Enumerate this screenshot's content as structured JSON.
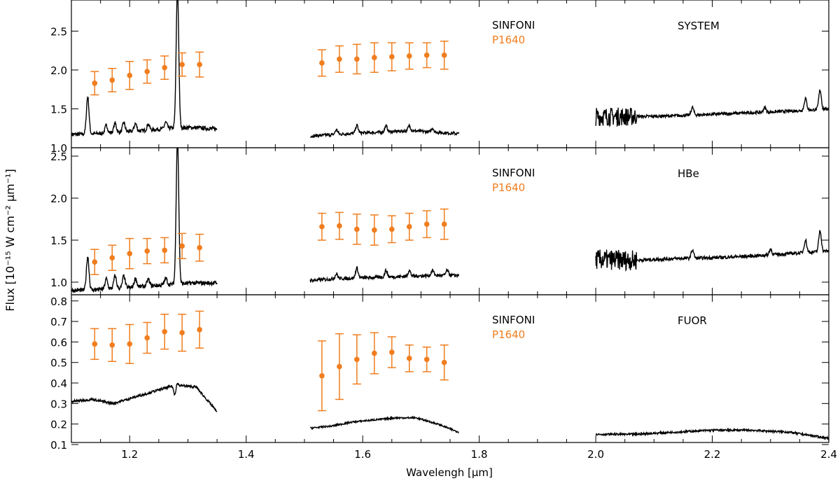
{
  "figure": {
    "xlabel": "Wavelengh [μm]",
    "ylabel": "Flux [10⁻¹⁵ W cm⁻² μm⁻¹]",
    "x_ticks": [
      "1.2",
      "1.4",
      "1.6",
      "1.8",
      "2.0",
      "2.2",
      "2.4"
    ],
    "colors": {
      "sinfoni": "#000000",
      "p1640": "#f07d1e",
      "axis": "#000000"
    }
  },
  "chart_data": [
    {
      "type": "line",
      "title": "SYSTEM",
      "legend": [
        "SINFONI",
        "P1640"
      ],
      "xlim": [
        1.1,
        2.4
      ],
      "ylim": [
        1.0,
        2.9
      ],
      "y_ticks": [
        "1.0",
        "1.5",
        "2.0",
        "2.5"
      ],
      "sinfoni": {
        "segments": [
          {
            "x0": 1.1,
            "x1": 1.35,
            "base": [
              1.17,
              1.18,
              1.2,
              1.22,
              1.25,
              1.26,
              1.24
            ],
            "noise": 0.025,
            "peaks": [
              [
                1.128,
                0.48
              ],
              [
                1.16,
                0.1
              ],
              [
                1.175,
                0.12
              ],
              [
                1.19,
                0.12
              ],
              [
                1.21,
                0.1
              ],
              [
                1.232,
                0.08
              ],
              [
                1.262,
                0.08
              ],
              [
                1.282,
                1.8
              ]
            ]
          },
          {
            "x0": 1.51,
            "x1": 1.765,
            "base": [
              1.15,
              1.17,
              1.19,
              1.2,
              1.22,
              1.2,
              1.18
            ],
            "noise": 0.02,
            "peaks": [
              [
                1.555,
                0.06
              ],
              [
                1.59,
                0.1
              ],
              [
                1.64,
                0.08
              ],
              [
                1.68,
                0.06
              ],
              [
                1.72,
                0.05
              ]
            ]
          },
          {
            "x0": 2.0,
            "x1": 2.4,
            "base": [
              1.4,
              1.4,
              1.41,
              1.43,
              1.45,
              1.47,
              1.5
            ],
            "noise": 0.02,
            "noisy_start": {
              "until": 2.07,
              "amp": 0.12
            },
            "peaks": [
              [
                2.166,
                0.1
              ],
              [
                2.29,
                0.06
              ],
              [
                2.36,
                0.15
              ],
              [
                2.385,
                0.25
              ]
            ]
          }
        ]
      },
      "p1640": {
        "x": [
          1.14,
          1.17,
          1.2,
          1.23,
          1.26,
          1.29,
          1.32,
          1.53,
          1.56,
          1.59,
          1.62,
          1.65,
          1.68,
          1.71,
          1.74
        ],
        "y": [
          1.83,
          1.87,
          1.93,
          1.98,
          2.03,
          2.07,
          2.07,
          2.09,
          2.14,
          2.14,
          2.16,
          2.17,
          2.18,
          2.19,
          2.19
        ],
        "err": [
          0.15,
          0.15,
          0.18,
          0.15,
          0.15,
          0.15,
          0.16,
          0.17,
          0.17,
          0.19,
          0.19,
          0.18,
          0.17,
          0.16,
          0.18
        ]
      }
    },
    {
      "type": "line",
      "title": "HBe",
      "legend": [
        "SINFONI",
        "P1640"
      ],
      "xlim": [
        1.1,
        2.4
      ],
      "ylim": [
        0.85,
        2.6
      ],
      "y_ticks": [
        "1.0",
        "1.5",
        "2.0",
        "2.5"
      ],
      "sinfoni": {
        "segments": [
          {
            "x0": 1.1,
            "x1": 1.35,
            "base": [
              0.9,
              0.91,
              0.93,
              0.95,
              0.97,
              0.99,
              0.99
            ],
            "noise": 0.025,
            "peaks": [
              [
                1.128,
                0.4
              ],
              [
                1.16,
                0.12
              ],
              [
                1.175,
                0.15
              ],
              [
                1.19,
                0.14
              ],
              [
                1.21,
                0.1
              ],
              [
                1.232,
                0.08
              ],
              [
                1.262,
                0.08
              ],
              [
                1.282,
                1.75
              ]
            ]
          },
          {
            "x0": 1.51,
            "x1": 1.765,
            "base": [
              1.02,
              1.04,
              1.05,
              1.06,
              1.07,
              1.08,
              1.08
            ],
            "noise": 0.02,
            "peaks": [
              [
                1.555,
                0.06
              ],
              [
                1.59,
                0.12
              ],
              [
                1.64,
                0.08
              ],
              [
                1.68,
                0.07
              ],
              [
                1.72,
                0.06
              ],
              [
                1.745,
                0.06
              ]
            ]
          },
          {
            "x0": 2.0,
            "x1": 2.4,
            "base": [
              1.27,
              1.26,
              1.28,
              1.29,
              1.31,
              1.34,
              1.37
            ],
            "noise": 0.02,
            "noisy_start": {
              "until": 2.07,
              "amp": 0.12
            },
            "peaks": [
              [
                2.166,
                0.1
              ],
              [
                2.3,
                0.07
              ],
              [
                2.36,
                0.15
              ],
              [
                2.385,
                0.25
              ]
            ]
          }
        ]
      },
      "p1640": {
        "x": [
          1.14,
          1.17,
          1.2,
          1.23,
          1.26,
          1.29,
          1.32,
          1.53,
          1.56,
          1.59,
          1.62,
          1.65,
          1.68,
          1.71,
          1.74
        ],
        "y": [
          1.24,
          1.29,
          1.34,
          1.37,
          1.38,
          1.43,
          1.41,
          1.66,
          1.67,
          1.63,
          1.62,
          1.63,
          1.66,
          1.69,
          1.69
        ],
        "err": [
          0.15,
          0.15,
          0.18,
          0.15,
          0.15,
          0.15,
          0.16,
          0.16,
          0.16,
          0.18,
          0.18,
          0.16,
          0.16,
          0.16,
          0.18
        ]
      }
    },
    {
      "type": "line",
      "title": "FUOR",
      "legend": [
        "SINFONI",
        "P1640"
      ],
      "xlim": [
        1.1,
        2.4
      ],
      "ylim": [
        0.11,
        0.83
      ],
      "y_ticks": [
        "0.1",
        "0.2",
        "0.3",
        "0.4",
        "0.5",
        "0.6",
        "0.7",
        "0.8"
      ],
      "sinfoni": {
        "segments": [
          {
            "x0": 1.1,
            "x1": 1.35,
            "base": [
              0.31,
              0.32,
              0.3,
              0.33,
              0.36,
              0.39,
              0.38,
              0.26
            ],
            "noise": 0.006,
            "peaks": [
              [
                1.278,
                -0.06
              ],
              [
                1.28,
                0.03
              ]
            ]
          },
          {
            "x0": 1.51,
            "x1": 1.765,
            "base": [
              0.18,
              0.19,
              0.21,
              0.22,
              0.23,
              0.23,
              0.2,
              0.16
            ],
            "noise": 0.004,
            "peaks": []
          },
          {
            "x0": 2.0,
            "x1": 2.4,
            "base": [
              0.15,
              0.15,
              0.16,
              0.17,
              0.17,
              0.16,
              0.13
            ],
            "noise": 0.005,
            "peaks": []
          }
        ]
      },
      "p1640": {
        "x": [
          1.14,
          1.17,
          1.2,
          1.23,
          1.26,
          1.29,
          1.32,
          1.53,
          1.56,
          1.59,
          1.62,
          1.65,
          1.68,
          1.71,
          1.74
        ],
        "y": [
          0.59,
          0.585,
          0.59,
          0.62,
          0.65,
          0.645,
          0.66,
          0.435,
          0.48,
          0.515,
          0.545,
          0.55,
          0.52,
          0.515,
          0.5
        ],
        "err": [
          0.075,
          0.08,
          0.095,
          0.075,
          0.085,
          0.09,
          0.09,
          0.17,
          0.16,
          0.12,
          0.1,
          0.075,
          0.065,
          0.06,
          0.085
        ]
      }
    }
  ]
}
